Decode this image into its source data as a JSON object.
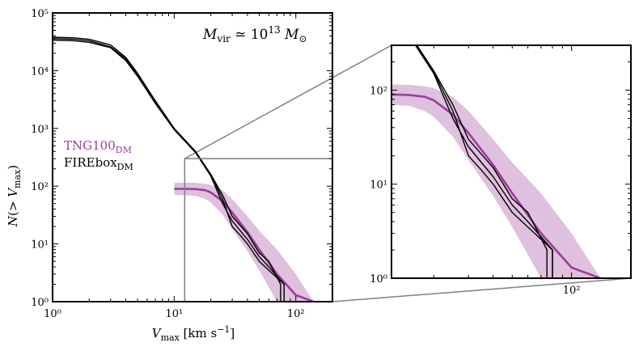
{
  "chart_data": [
    {
      "type": "line",
      "panel": "main",
      "xscale": "log",
      "yscale": "log",
      "xlim": [
        1,
        200
      ],
      "ylim": [
        1,
        100000
      ],
      "xlabel": "Vmax [km s−1]",
      "ylabel": "N(> Vmax)",
      "xticks": [
        "10⁰",
        "10¹",
        "10²"
      ],
      "yticks": [
        "10⁰",
        "10¹",
        "10²",
        "10³",
        "10⁴",
        "10⁵"
      ],
      "annotation": "Mvir ≃ 10¹³ M⊙",
      "legend": [
        {
          "label": "TNG100",
          "sub": "DM",
          "color": "#9a3d9a"
        },
        {
          "label": "FIREbox",
          "sub": "DM",
          "color": "#000000"
        }
      ],
      "inset_box": {
        "x": [
          12.2,
          200
        ],
        "y": [
          1,
          300
        ]
      },
      "series": [
        {
          "name": "TNG100_DM median",
          "color": "#9a3d9a",
          "x": [
            10,
            12,
            15,
            18,
            20,
            25,
            30,
            40,
            50,
            70,
            100,
            140
          ],
          "y": [
            90,
            90,
            89,
            85,
            78,
            55,
            35,
            16,
            8,
            3,
            1.3,
            1.0
          ],
          "band_low": [
            70,
            70,
            68,
            60,
            52,
            32,
            18,
            7.5,
            3.5,
            1.0,
            1.0,
            1.0
          ],
          "band_high": [
            115,
            115,
            114,
            110,
            105,
            85,
            60,
            30,
            17,
            8,
            3,
            1.0
          ]
        },
        {
          "name": "FIREbox_DM run 1",
          "color": "#000000",
          "x": [
            1,
            1.5,
            2,
            3,
            4,
            5,
            7,
            10,
            15,
            20,
            25,
            30,
            40,
            50,
            60,
            75,
            75,
            100,
            100,
            130,
            130
          ],
          "y": [
            38000,
            37000,
            35000,
            28000,
            17000,
            9000,
            3000,
            1000,
            400,
            160,
            70,
            30,
            15,
            7,
            5,
            2,
            1,
            1,
            1,
            1,
            1
          ]
        },
        {
          "name": "FIREbox_DM run 2",
          "color": "#000000",
          "x": [
            1,
            1.5,
            2,
            3,
            4,
            5,
            7,
            10,
            15,
            20,
            25,
            30,
            40,
            50,
            60,
            80,
            80,
            110,
            110,
            140
          ],
          "y": [
            34000,
            33000,
            31000,
            25000,
            15000,
            8000,
            2700,
            950,
            380,
            150,
            50,
            25,
            12,
            6,
            4,
            2,
            1,
            1,
            1,
            1
          ]
        },
        {
          "name": "FIREbox_DM run 3",
          "color": "#000000",
          "x": [
            1,
            1.5,
            2,
            3,
            4,
            5,
            7,
            10,
            15,
            20,
            25,
            30,
            35,
            40,
            50,
            60,
            80,
            80,
            110,
            110,
            150
          ],
          "y": [
            36000,
            35000,
            33000,
            26000,
            16000,
            8500,
            2800,
            980,
            390,
            155,
            60,
            20,
            14,
            10,
            5,
            3.5,
            2,
            1,
            1,
            1,
            1
          ]
        }
      ]
    },
    {
      "type": "line",
      "panel": "inset",
      "xscale": "log",
      "yscale": "log",
      "xlim": [
        12.2,
        200
      ],
      "ylim": [
        1,
        300
      ],
      "xticks": [
        "10²"
      ],
      "yticks": [
        "10⁰",
        "10¹",
        "10²"
      ]
    }
  ]
}
